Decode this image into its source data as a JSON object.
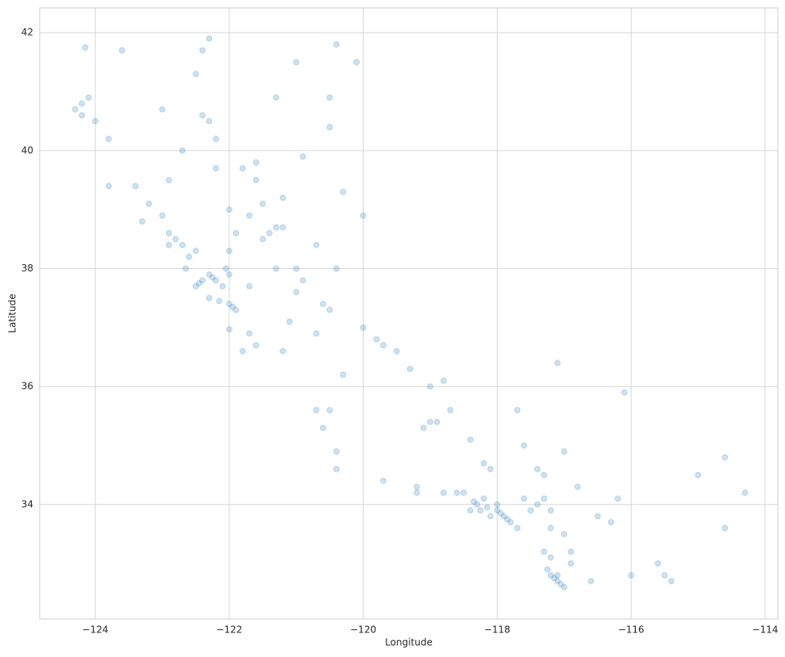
{
  "chart_data": {
    "type": "scatter",
    "xlabel": "Longitude",
    "ylabel": "Latitude",
    "color": "#1f77b4",
    "opacity": 0.22,
    "grid": true,
    "xlim": [
      -124.83,
      -113.81
    ],
    "ylim": [
      32.06,
      42.42
    ],
    "xticks": [
      {
        "value": -124,
        "label": "−124"
      },
      {
        "value": -122,
        "label": "−122"
      },
      {
        "value": -120,
        "label": "−120"
      },
      {
        "value": -118,
        "label": "−118"
      },
      {
        "value": -116,
        "label": "−116"
      },
      {
        "value": -114,
        "label": "−114"
      }
    ],
    "yticks": [
      34,
      36,
      38,
      40,
      42
    ],
    "x": [
      -124.2,
      -124.1,
      -124.15,
      -124.2,
      -124.0,
      -124.3,
      -123.8,
      -123.4,
      -123.2,
      -122.4,
      -122.3,
      -122.2,
      -121.6,
      -121.8,
      -121.6,
      -121.5,
      -121.2,
      -121.3,
      -121.4,
      -121.5,
      -121.2,
      -120.0,
      -121.0,
      -121.3,
      -121.0,
      -120.6,
      -122.7,
      -122.6,
      -122.4,
      -122.2,
      -122.0,
      -122.3,
      -122.0,
      -121.9,
      -122.0,
      -121.8,
      -122.1,
      -121.7,
      -122.5,
      -122.8,
      -122.5,
      -122.0,
      -122.25,
      -122.15,
      -121.95,
      -122.45,
      -122.3,
      -122.05,
      -122.65,
      -122.9,
      -119.8,
      -119.7,
      -119.3,
      -119.0,
      -119.1,
      -120.4,
      -120.6,
      -120.7,
      -121.6,
      -120.5,
      -120.0,
      -118.3,
      -118.2,
      -118.0,
      -117.9,
      -117.8,
      -118.4,
      -118.1,
      -118.5,
      -118.6,
      -118.8,
      -119.2,
      -119.7,
      -117.3,
      -117.4,
      -117.2,
      -117.6,
      -117.1,
      -117.1,
      -117.2,
      -117.0,
      -117.3,
      -117.2,
      -116.5,
      -116.3,
      -115.5,
      -115.6,
      -114.6,
      -114.6,
      -116.2,
      -117.0,
      -117.3,
      -118.1,
      -118.2,
      -118.9,
      -117.7,
      -118.4,
      -114.3,
      -115.0,
      -116.1,
      -117.1,
      -122.3,
      -120.4,
      -121.0,
      -123.6,
      -122.5,
      -120.1,
      -120.5,
      -120.5,
      -123.0,
      -123.8,
      -122.9,
      -122.2,
      -122.0,
      -120.9,
      -120.3,
      -120.7,
      -120.4,
      -121.7,
      -121.9,
      -118.0,
      -118.15,
      -117.95,
      -117.85,
      -118.25,
      -118.35,
      -117.7,
      -117.5,
      -117.15,
      -117.05,
      -117.25,
      -119.0,
      -118.8,
      -119.5,
      -120.3,
      -121.2,
      -121.7,
      -120.7,
      -118.7,
      -117.6,
      -116.6,
      -116.0,
      -115.4,
      -116.9,
      -116.9,
      -117.0,
      -117.2,
      -116.8,
      -117.4,
      -119.2,
      -120.4,
      -120.5,
      -122.4,
      -121.3,
      -122.7,
      -123.3,
      -123.0,
      -122.9,
      -121.1,
      -120.9
    ],
    "values": [
      40.8,
      40.9,
      41.75,
      40.6,
      40.5,
      40.7,
      39.4,
      39.4,
      39.1,
      40.6,
      40.5,
      40.2,
      39.8,
      39.7,
      39.5,
      39.1,
      39.2,
      38.7,
      38.6,
      38.5,
      38.7,
      38.9,
      38.0,
      38.0,
      37.6,
      37.4,
      38.4,
      38.2,
      37.8,
      37.8,
      37.9,
      37.5,
      37.4,
      37.3,
      36.97,
      36.6,
      37.7,
      37.7,
      37.7,
      38.5,
      38.3,
      38.3,
      37.85,
      37.45,
      37.35,
      37.75,
      37.9,
      38.0,
      38.0,
      38.4,
      36.8,
      36.7,
      36.3,
      35.4,
      35.3,
      34.9,
      35.3,
      35.6,
      36.7,
      37.3,
      37.0,
      34.0,
      34.1,
      33.9,
      33.8,
      33.7,
      33.9,
      33.8,
      34.2,
      34.2,
      34.2,
      34.2,
      34.4,
      34.1,
      34.0,
      33.9,
      34.1,
      32.7,
      32.8,
      32.8,
      32.6,
      33.2,
      33.1,
      33.8,
      33.7,
      32.8,
      33.0,
      34.8,
      33.6,
      34.1,
      34.9,
      34.5,
      34.6,
      34.7,
      35.4,
      35.6,
      35.1,
      34.2,
      34.5,
      35.9,
      36.4,
      41.9,
      41.8,
      41.5,
      41.7,
      41.3,
      41.5,
      40.4,
      40.9,
      40.7,
      40.2,
      39.5,
      39.7,
      39.0,
      39.9,
      39.3,
      38.4,
      38.0,
      38.9,
      38.6,
      34.0,
      33.95,
      33.85,
      33.75,
      33.9,
      34.05,
      33.6,
      33.9,
      32.75,
      32.65,
      32.9,
      36.0,
      36.1,
      36.6,
      36.2,
      36.6,
      36.9,
      36.9,
      35.6,
      35.0,
      32.7,
      32.8,
      32.7,
      33.2,
      33.0,
      33.5,
      33.6,
      34.3,
      34.6,
      34.3,
      34.6,
      35.6,
      41.7,
      40.9,
      40.0,
      38.8,
      38.9,
      38.6,
      37.1,
      37.8
    ]
  }
}
